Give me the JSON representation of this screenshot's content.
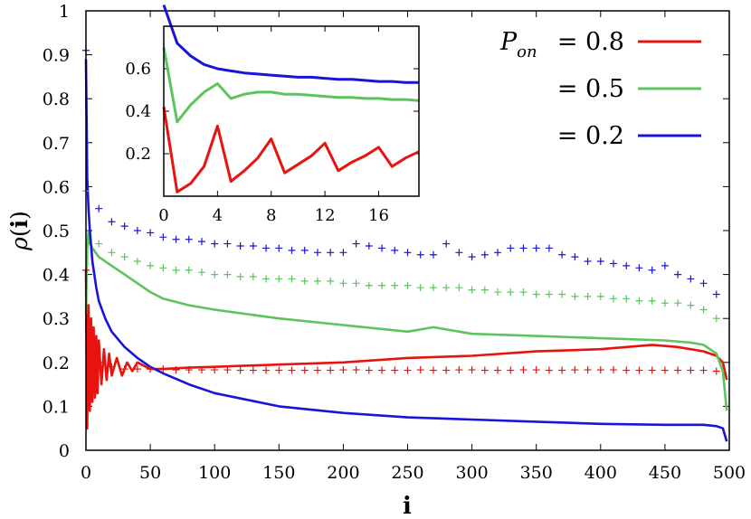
{
  "chart_data": {
    "type": "line",
    "xlabel": "i",
    "ylabel": "ρ(i)",
    "xlim": [
      0,
      500
    ],
    "ylim": [
      0,
      1
    ],
    "x_ticks": [
      "0",
      "50",
      "100",
      "150",
      "200",
      "250",
      "300",
      "350",
      "400",
      "450",
      "500"
    ],
    "y_ticks": [
      "0",
      "0.1",
      "0.2",
      "0.3",
      "0.4",
      "0.5",
      "0.6",
      "0.7",
      "0.8",
      "0.9",
      "1"
    ],
    "legend": {
      "title": "P",
      "title_sub": "on",
      "entries": [
        "= 0.8",
        "= 0.5",
        "= 0.2"
      ],
      "placement": "top-right"
    },
    "series": [
      {
        "name": "P_on = 0.8",
        "color": "#e8130f",
        "x": [
          0,
          1,
          2,
          3,
          4,
          5,
          6,
          7,
          8,
          9,
          10,
          12,
          14,
          16,
          18,
          20,
          24,
          28,
          32,
          36,
          40,
          50,
          60,
          80,
          100,
          150,
          200,
          250,
          300,
          350,
          400,
          440,
          460,
          480,
          490,
          495,
          498
        ],
        "values": [
          0.41,
          0.05,
          0.33,
          0.09,
          0.3,
          0.11,
          0.28,
          0.12,
          0.26,
          0.13,
          0.25,
          0.15,
          0.23,
          0.16,
          0.22,
          0.17,
          0.21,
          0.17,
          0.2,
          0.18,
          0.2,
          0.185,
          0.185,
          0.188,
          0.19,
          0.195,
          0.2,
          0.21,
          0.215,
          0.225,
          0.23,
          0.24,
          0.235,
          0.225,
          0.215,
          0.2,
          0.16
        ]
      },
      {
        "name": "P_on = 0.5",
        "color": "#5cc45c",
        "x": [
          0,
          1,
          2,
          3,
          5,
          10,
          20,
          30,
          40,
          50,
          60,
          80,
          100,
          150,
          200,
          250,
          270,
          300,
          350,
          400,
          450,
          470,
          480,
          490,
          495,
          498
        ],
        "values": [
          0.31,
          0.46,
          0.5,
          0.47,
          0.46,
          0.44,
          0.42,
          0.4,
          0.38,
          0.36,
          0.345,
          0.33,
          0.32,
          0.3,
          0.285,
          0.27,
          0.28,
          0.265,
          0.26,
          0.255,
          0.25,
          0.245,
          0.24,
          0.22,
          0.18,
          0.09
        ]
      },
      {
        "name": "P_on = 0.2",
        "color": "#1a14d8",
        "x": [
          0,
          1,
          2,
          3,
          5,
          8,
          10,
          15,
          20,
          30,
          40,
          50,
          60,
          80,
          100,
          150,
          200,
          250,
          300,
          350,
          400,
          450,
          480,
          490,
          495,
          498
        ],
        "values": [
          0.89,
          0.62,
          0.55,
          0.5,
          0.43,
          0.37,
          0.34,
          0.3,
          0.27,
          0.235,
          0.21,
          0.19,
          0.175,
          0.15,
          0.13,
          0.1,
          0.085,
          0.075,
          0.07,
          0.065,
          0.06,
          0.058,
          0.058,
          0.055,
          0.05,
          0.02
        ]
      },
      {
        "name": "markers P_on = 0.8",
        "color": "#e8130f",
        "style": "plus",
        "x": [
          0,
          10,
          20,
          30,
          40,
          50,
          60,
          70,
          80,
          90,
          100,
          110,
          120,
          130,
          140,
          150,
          160,
          170,
          180,
          190,
          200,
          210,
          220,
          230,
          240,
          250,
          260,
          270,
          280,
          290,
          300,
          310,
          320,
          330,
          340,
          350,
          360,
          370,
          380,
          390,
          400,
          410,
          420,
          430,
          440,
          450,
          460,
          470,
          480,
          490
        ],
        "values": [
          0.41,
          0.2,
          0.19,
          0.185,
          0.185,
          0.185,
          0.185,
          0.183,
          0.183,
          0.183,
          0.183,
          0.183,
          0.182,
          0.182,
          0.182,
          0.182,
          0.182,
          0.182,
          0.182,
          0.182,
          0.183,
          0.183,
          0.182,
          0.182,
          0.182,
          0.182,
          0.183,
          0.182,
          0.182,
          0.183,
          0.183,
          0.182,
          0.182,
          0.182,
          0.183,
          0.183,
          0.182,
          0.182,
          0.183,
          0.183,
          0.183,
          0.183,
          0.182,
          0.182,
          0.182,
          0.182,
          0.182,
          0.182,
          0.182,
          0.18
        ]
      },
      {
        "name": "markers P_on = 0.5",
        "color": "#5cc45c",
        "style": "plus",
        "x": [
          0,
          10,
          20,
          30,
          40,
          50,
          60,
          70,
          80,
          90,
          100,
          110,
          120,
          130,
          140,
          150,
          160,
          170,
          180,
          190,
          200,
          210,
          220,
          230,
          240,
          250,
          260,
          270,
          280,
          290,
          300,
          310,
          320,
          330,
          340,
          350,
          360,
          370,
          380,
          390,
          400,
          410,
          420,
          430,
          440,
          450,
          460,
          470,
          480,
          490
        ],
        "values": [
          0.59,
          0.47,
          0.45,
          0.44,
          0.43,
          0.42,
          0.415,
          0.41,
          0.41,
          0.405,
          0.4,
          0.4,
          0.395,
          0.395,
          0.39,
          0.39,
          0.39,
          0.385,
          0.385,
          0.385,
          0.38,
          0.38,
          0.375,
          0.375,
          0.375,
          0.375,
          0.37,
          0.37,
          0.37,
          0.37,
          0.365,
          0.365,
          0.36,
          0.36,
          0.36,
          0.355,
          0.355,
          0.355,
          0.35,
          0.35,
          0.35,
          0.345,
          0.345,
          0.34,
          0.34,
          0.335,
          0.335,
          0.33,
          0.32,
          0.3
        ]
      },
      {
        "name": "markers P_on = 0.2",
        "color": "#1a14d8",
        "style": "plus",
        "x": [
          0,
          10,
          20,
          30,
          40,
          50,
          60,
          70,
          80,
          90,
          100,
          110,
          120,
          130,
          140,
          150,
          160,
          170,
          180,
          190,
          200,
          210,
          220,
          230,
          240,
          250,
          260,
          270,
          280,
          290,
          300,
          310,
          320,
          330,
          340,
          350,
          360,
          370,
          380,
          390,
          400,
          410,
          420,
          430,
          440,
          450,
          460,
          470,
          480,
          490
        ],
        "values": [
          0.91,
          0.55,
          0.52,
          0.51,
          0.5,
          0.495,
          0.485,
          0.48,
          0.48,
          0.475,
          0.47,
          0.47,
          0.465,
          0.465,
          0.46,
          0.46,
          0.455,
          0.455,
          0.45,
          0.45,
          0.45,
          0.47,
          0.465,
          0.46,
          0.455,
          0.45,
          0.445,
          0.445,
          0.47,
          0.45,
          0.44,
          0.445,
          0.45,
          0.46,
          0.46,
          0.46,
          0.46,
          0.445,
          0.44,
          0.43,
          0.43,
          0.425,
          0.42,
          0.415,
          0.41,
          0.42,
          0.4,
          0.39,
          0.38,
          0.355
        ]
      }
    ],
    "inset": {
      "xlim": [
        0,
        19
      ],
      "ylim": [
        0,
        0.8
      ],
      "x_ticks": [
        "0",
        "4",
        "8",
        "12",
        "16"
      ],
      "y_ticks": [
        "0.2",
        "0.4",
        "0.6"
      ],
      "series": [
        {
          "name": "P_on = 0.8",
          "color": "#e8130f",
          "x": [
            0,
            1,
            2,
            3,
            4,
            5,
            6,
            7,
            8,
            9,
            10,
            11,
            12,
            13,
            14,
            15,
            16,
            17,
            18,
            19
          ],
          "values": [
            0.42,
            0.02,
            0.06,
            0.14,
            0.33,
            0.07,
            0.12,
            0.18,
            0.27,
            0.11,
            0.15,
            0.19,
            0.25,
            0.12,
            0.16,
            0.19,
            0.23,
            0.14,
            0.18,
            0.21
          ]
        },
        {
          "name": "P_on = 0.5",
          "color": "#5cc45c",
          "x": [
            0,
            1,
            2,
            3,
            4,
            5,
            6,
            7,
            8,
            9,
            10,
            11,
            12,
            13,
            14,
            15,
            16,
            17,
            18,
            19
          ],
          "values": [
            0.7,
            0.35,
            0.43,
            0.49,
            0.53,
            0.46,
            0.48,
            0.49,
            0.49,
            0.48,
            0.48,
            0.475,
            0.47,
            0.465,
            0.465,
            0.46,
            0.46,
            0.455,
            0.455,
            0.45
          ]
        },
        {
          "name": "P_on = 0.2",
          "color": "#1a14d8",
          "x": [
            0,
            1,
            2,
            3,
            4,
            5,
            6,
            7,
            8,
            9,
            10,
            11,
            12,
            13,
            14,
            15,
            16,
            17,
            18,
            19
          ],
          "values": [
            0.9,
            0.72,
            0.66,
            0.62,
            0.6,
            0.59,
            0.58,
            0.575,
            0.57,
            0.565,
            0.56,
            0.56,
            0.555,
            0.55,
            0.55,
            0.545,
            0.54,
            0.54,
            0.535,
            0.535
          ]
        }
      ]
    }
  }
}
